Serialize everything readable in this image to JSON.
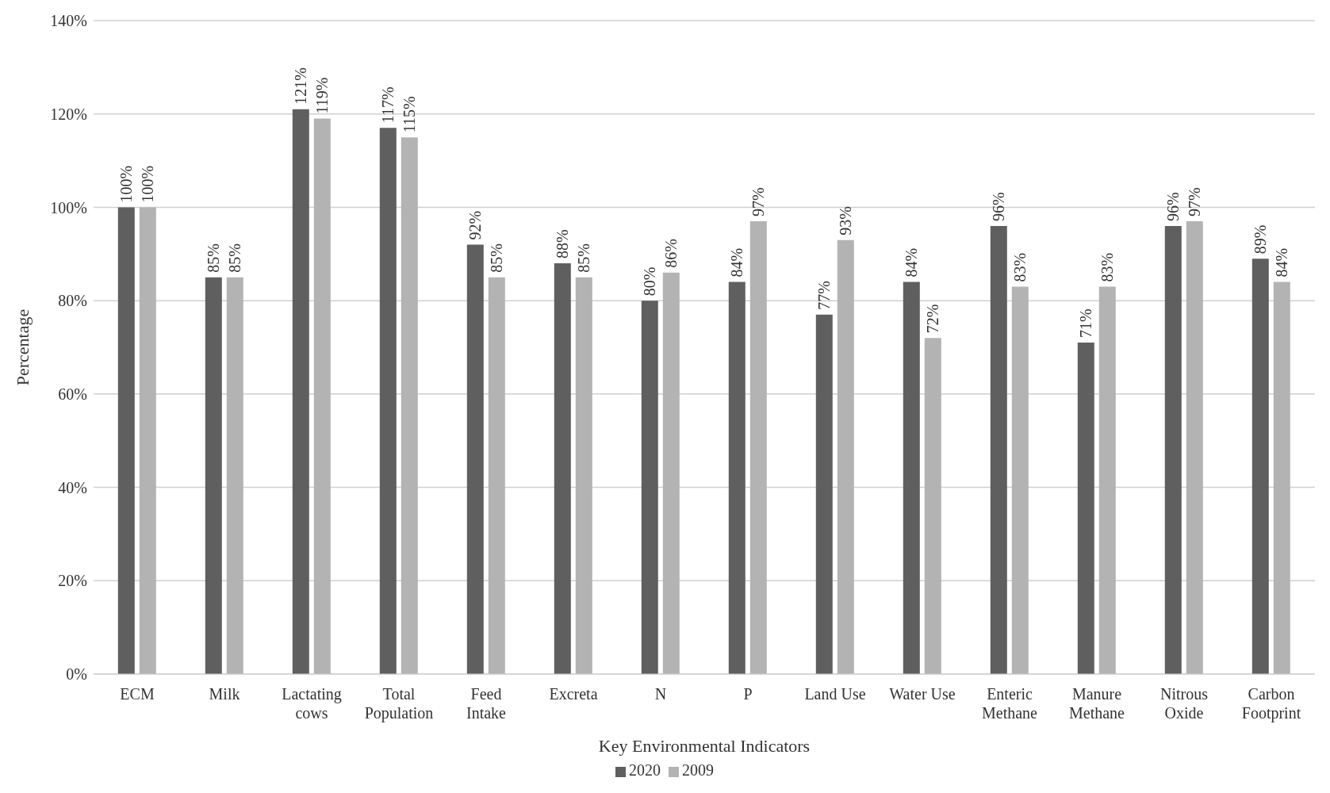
{
  "chart_data": {
    "type": "bar",
    "xlabel": "Key Environmental Indicators",
    "ylabel": "Percentage",
    "categories": [
      "ECM",
      "Milk",
      "Lactating cows",
      "Total Population",
      "Feed Intake",
      "Excreta",
      "N",
      "P",
      "Land Use",
      "Water Use",
      "Enteric Methane",
      "Manure Methane",
      "Nitrous Oxide",
      "Carbon Footprint"
    ],
    "series": [
      {
        "name": "2020",
        "color": "#5f5f5f",
        "values": [
          100,
          85,
          121,
          117,
          92,
          88,
          80,
          84,
          77,
          84,
          96,
          71,
          96,
          89
        ],
        "value_labels": [
          "100%",
          "85%",
          "121%",
          "117%",
          "92%",
          "88%",
          "80%",
          "84%",
          "77%",
          "84%",
          "96%",
          "71%",
          "96%",
          "89%"
        ]
      },
      {
        "name": "2009",
        "color": "#b3b3b3",
        "values": [
          100,
          85,
          119,
          115,
          85,
          85,
          86,
          97,
          93,
          72,
          83,
          83,
          97,
          84
        ],
        "value_labels": [
          "100%",
          "85%",
          "119%",
          "115%",
          "85%",
          "85%",
          "86%",
          "97%",
          "93%",
          "72%",
          "83%",
          "83%",
          "97%",
          "84%"
        ]
      }
    ],
    "ylim": [
      0,
      140
    ],
    "yticks": [
      {
        "value": 0,
        "label": "0%"
      },
      {
        "value": 20,
        "label": "20%"
      },
      {
        "value": 40,
        "label": "40%"
      },
      {
        "value": 60,
        "label": "60%"
      },
      {
        "value": 80,
        "label": "80%"
      },
      {
        "value": 100,
        "label": "100%"
      },
      {
        "value": 120,
        "label": "120%"
      },
      {
        "value": 140,
        "label": "140%"
      }
    ],
    "grid": "y",
    "legend": "bottom"
  }
}
